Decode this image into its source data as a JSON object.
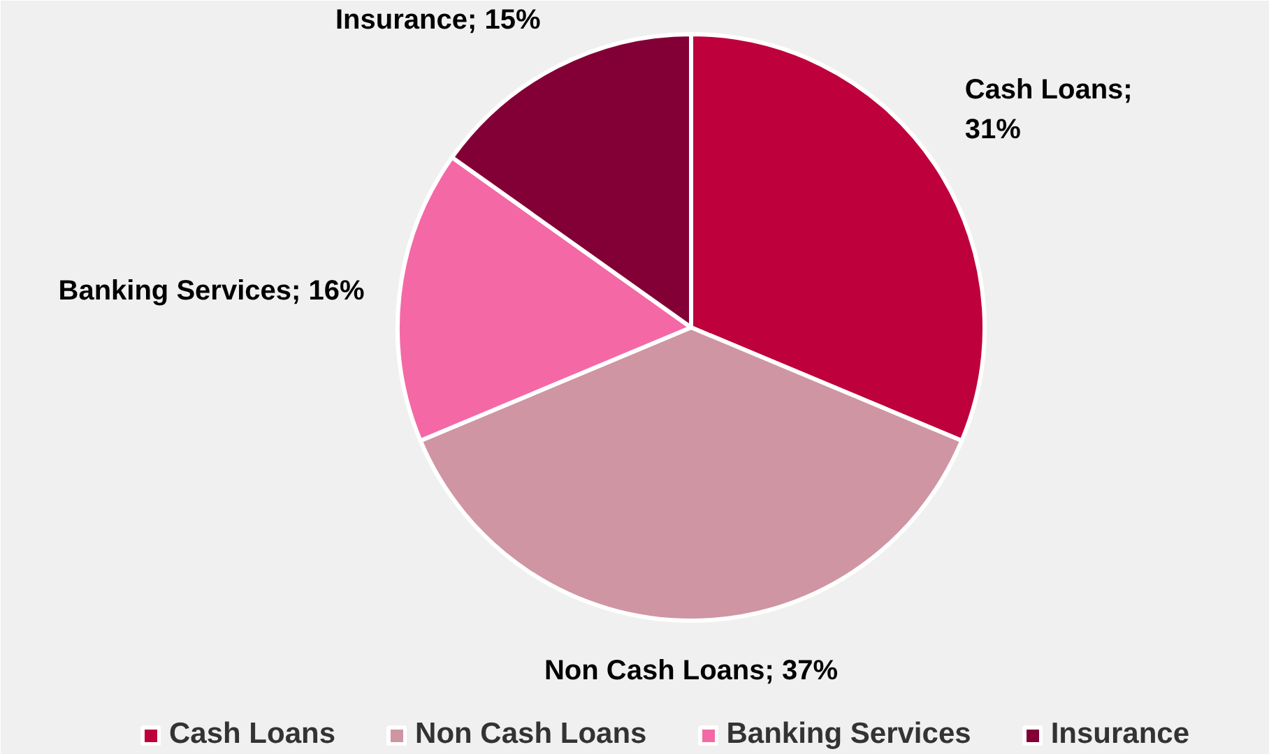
{
  "chart_data": {
    "type": "pie",
    "categories": [
      "Cash Loans",
      "Non Cash Loans",
      "Banking Services",
      "Insurance"
    ],
    "values": [
      31,
      37,
      16,
      15
    ],
    "colors": [
      "#be003c",
      "#cf95a2",
      "#f468a6",
      "#830036"
    ],
    "value_labels": [
      "Cash Loans; 31%",
      "Non Cash Loans; 37%",
      "Banking Services; 16%",
      "Insurance; 15%"
    ],
    "legend": "bottom"
  }
}
